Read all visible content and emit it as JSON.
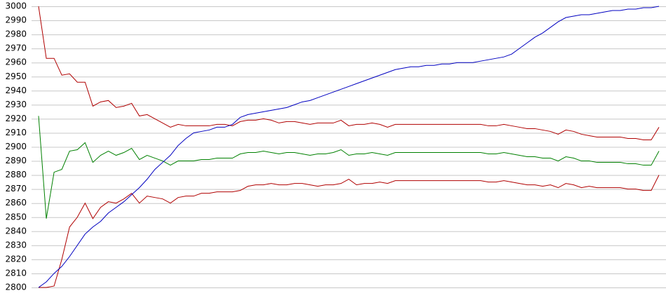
{
  "chart_data": {
    "type": "line",
    "x": [
      0,
      1,
      2,
      3,
      4,
      5,
      6,
      7,
      8,
      9,
      10,
      11,
      12,
      13,
      14,
      15,
      16,
      17,
      18,
      19,
      20,
      21,
      22,
      23,
      24,
      25,
      26,
      27,
      28,
      29,
      30,
      31,
      32,
      33,
      34,
      35,
      36,
      37,
      38,
      39,
      40,
      41,
      42,
      43,
      44,
      45,
      46,
      47,
      48,
      49,
      50,
      51,
      52,
      53,
      54,
      55,
      56,
      57,
      58,
      59,
      60,
      61,
      62,
      63,
      64,
      65,
      66,
      67,
      68,
      69,
      70,
      71,
      72,
      73,
      74,
      75,
      76,
      77,
      78,
      79,
      80
    ],
    "xlim": [
      0,
      80
    ],
    "ylim": [
      2800,
      3000
    ],
    "yticks": [
      2800,
      2810,
      2820,
      2830,
      2840,
      2850,
      2860,
      2870,
      2880,
      2890,
      2900,
      2910,
      2920,
      2930,
      2940,
      2950,
      2960,
      2970,
      2980,
      2990,
      3000
    ],
    "grid": true,
    "series": [
      {
        "color": "#b00000",
        "values": [
          3000,
          2963,
          2963,
          2951,
          2952,
          2946,
          2946,
          2929,
          2932,
          2933,
          2928,
          2929,
          2931,
          2922,
          2923,
          2920,
          2917,
          2914,
          2916,
          2915,
          2915,
          2915,
          2915,
          2916,
          2916,
          2915,
          2918,
          2919,
          2919,
          2920,
          2919,
          2917,
          2918,
          2918,
          2917,
          2916,
          2917,
          2917,
          2917,
          2919,
          2915,
          2916,
          2916,
          2917,
          2916,
          2914,
          2916,
          2916,
          2916,
          2916,
          2916,
          2916,
          2916,
          2916,
          2916,
          2916,
          2916,
          2916,
          2915,
          2915,
          2916,
          2915,
          2914,
          2913,
          2913,
          2912,
          2911,
          2909,
          2912,
          2911,
          2909,
          2908,
          2907,
          2907,
          2907,
          2907,
          2906,
          2906,
          2905,
          2905,
          2914
        ]
      },
      {
        "color": "#008000",
        "values": [
          2922,
          2849,
          2882,
          2884,
          2897,
          2898,
          2903,
          2889,
          2894,
          2897,
          2894,
          2896,
          2899,
          2891,
          2894,
          2892,
          2890,
          2887,
          2890,
          2890,
          2890,
          2891,
          2891,
          2892,
          2892,
          2892,
          2895,
          2896,
          2896,
          2897,
          2896,
          2895,
          2896,
          2896,
          2895,
          2894,
          2895,
          2895,
          2896,
          2898,
          2894,
          2895,
          2895,
          2896,
          2895,
          2894,
          2896,
          2896,
          2896,
          2896,
          2896,
          2896,
          2896,
          2896,
          2896,
          2896,
          2896,
          2896,
          2895,
          2895,
          2896,
          2895,
          2894,
          2893,
          2893,
          2892,
          2892,
          2890,
          2893,
          2892,
          2890,
          2890,
          2889,
          2889,
          2889,
          2889,
          2888,
          2888,
          2887,
          2887,
          2897
        ]
      },
      {
        "color": "#b00000",
        "values": [
          2800,
          2800,
          2801,
          2820,
          2843,
          2850,
          2860,
          2849,
          2857,
          2861,
          2860,
          2863,
          2867,
          2860,
          2865,
          2864,
          2863,
          2860,
          2864,
          2865,
          2865,
          2867,
          2867,
          2868,
          2868,
          2868,
          2869,
          2872,
          2873,
          2873,
          2874,
          2873,
          2873,
          2874,
          2874,
          2873,
          2872,
          2873,
          2873,
          2874,
          2877,
          2873,
          2874,
          2874,
          2875,
          2874,
          2876,
          2876,
          2876,
          2876,
          2876,
          2876,
          2876,
          2876,
          2876,
          2876,
          2876,
          2876,
          2875,
          2875,
          2876,
          2875,
          2874,
          2873,
          2873,
          2872,
          2873,
          2871,
          2874,
          2873,
          2871,
          2872,
          2871,
          2871,
          2871,
          2871,
          2870,
          2870,
          2869,
          2869,
          2880
        ]
      },
      {
        "color": "#0000c0",
        "values": [
          2800,
          2804,
          2810,
          2815,
          2822,
          2830,
          2838,
          2843,
          2847,
          2853,
          2857,
          2861,
          2866,
          2871,
          2877,
          2884,
          2889,
          2894,
          2901,
          2906,
          2910,
          2911,
          2912,
          2914,
          2914,
          2916,
          2921,
          2923,
          2924,
          2925,
          2926,
          2927,
          2928,
          2930,
          2932,
          2933,
          2935,
          2937,
          2939,
          2941,
          2943,
          2945,
          2947,
          2949,
          2951,
          2953,
          2955,
          2956,
          2957,
          2957,
          2958,
          2958,
          2959,
          2959,
          2960,
          2960,
          2960,
          2961,
          2962,
          2963,
          2964,
          2966,
          2970,
          2974,
          2978,
          2981,
          2985,
          2989,
          2992,
          2993,
          2994,
          2994,
          2995,
          2996,
          2997,
          2997,
          2998,
          2998,
          2999,
          2999,
          3000
        ]
      }
    ]
  }
}
